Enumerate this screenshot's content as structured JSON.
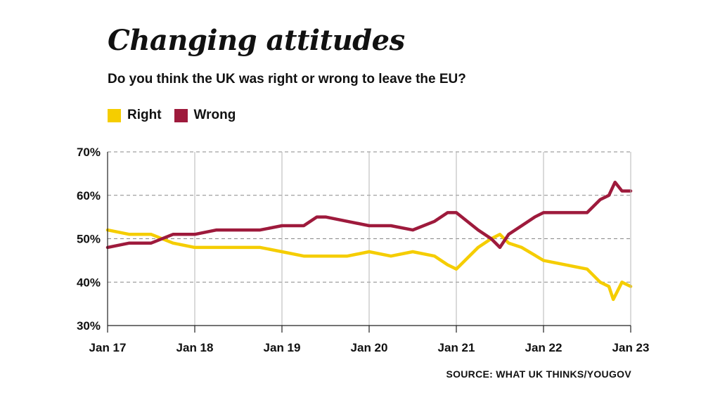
{
  "chart_data": {
    "type": "line",
    "title": "Changing attitudes",
    "subtitle": "Do you think the UK was right or wrong to leave the EU?",
    "source": "SOURCE: WHAT UK THINKS/YOUGOV",
    "y_ticks": [
      "30%",
      "40%",
      "50%",
      "60%",
      "70%"
    ],
    "ylim": [
      30,
      70
    ],
    "x_ticks": [
      "Jan 17",
      "Jan 18",
      "Jan 19",
      "Jan 20",
      "Jan 21",
      "Jan 22",
      "Jan 23"
    ],
    "xlim": [
      2017,
      2023
    ],
    "grid": true,
    "legend_position": "top-left",
    "series": [
      {
        "name": "Right",
        "color": "#f5cd00",
        "x": [
          2017.0,
          2017.25,
          2017.5,
          2017.75,
          2018.0,
          2018.25,
          2018.5,
          2018.75,
          2019.0,
          2019.25,
          2019.5,
          2019.75,
          2020.0,
          2020.25,
          2020.5,
          2020.75,
          2020.9,
          2021.0,
          2021.25,
          2021.4,
          2021.5,
          2021.6,
          2021.75,
          2022.0,
          2022.25,
          2022.5,
          2022.65,
          2022.75,
          2022.8,
          2022.9,
          2023.0
        ],
        "values": [
          52,
          51,
          51,
          49,
          48,
          48,
          48,
          48,
          47,
          46,
          46,
          46,
          47,
          46,
          47,
          46,
          44,
          43,
          48,
          50,
          51,
          49,
          48,
          45,
          44,
          43,
          40,
          39,
          36,
          40,
          39
        ]
      },
      {
        "name": "Wrong",
        "color": "#9e1a3c",
        "x": [
          2017.0,
          2017.25,
          2017.5,
          2017.75,
          2018.0,
          2018.25,
          2018.5,
          2018.75,
          2019.0,
          2019.25,
          2019.4,
          2019.5,
          2019.75,
          2020.0,
          2020.25,
          2020.5,
          2020.75,
          2020.9,
          2021.0,
          2021.25,
          2021.4,
          2021.5,
          2021.6,
          2021.75,
          2021.9,
          2022.0,
          2022.25,
          2022.5,
          2022.65,
          2022.75,
          2022.82,
          2022.9,
          2023.0
        ],
        "values": [
          48,
          49,
          49,
          51,
          51,
          52,
          52,
          52,
          53,
          53,
          55,
          55,
          54,
          53,
          53,
          52,
          54,
          56,
          56,
          52,
          50,
          48,
          51,
          53,
          55,
          56,
          56,
          56,
          59,
          60,
          63,
          61,
          61
        ]
      }
    ]
  }
}
